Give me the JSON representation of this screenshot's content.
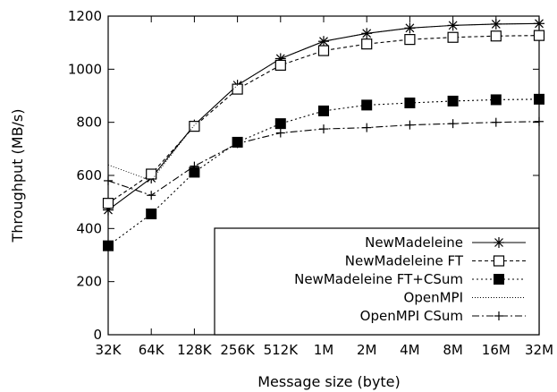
{
  "chart_data": {
    "type": "line",
    "title": "",
    "xlabel": "Message size (byte)",
    "ylabel": "Throughput (MB/s)",
    "categories": [
      "32K",
      "64K",
      "128K",
      "256K",
      "512K",
      "1M",
      "2M",
      "4M",
      "8M",
      "16M",
      "32M"
    ],
    "ylim": [
      0,
      1200
    ],
    "yticks": [
      "0",
      "200",
      "400",
      "600",
      "800",
      "1000",
      "1200"
    ],
    "grid": false,
    "legend_position": "bottom-right",
    "series": [
      {
        "name": "NewMadeleine",
        "marker": "star",
        "dash": "solid",
        "values": [
          470,
          590,
          790,
          940,
          1040,
          1105,
          1135,
          1155,
          1165,
          1170,
          1172
        ]
      },
      {
        "name": "NewMadeleine FT",
        "marker": "open-square",
        "dash": "dashed",
        "values": [
          495,
          605,
          785,
          925,
          1015,
          1070,
          1095,
          1112,
          1120,
          1125,
          1127
        ]
      },
      {
        "name": "NewMadeleine FT+CSum",
        "marker": "filled-square",
        "dash": "dotted",
        "values": [
          335,
          455,
          612,
          725,
          795,
          843,
          865,
          873,
          880,
          885,
          887
        ]
      },
      {
        "name": "OpenMPI",
        "marker": "none",
        "dash": "fine-dotted",
        "values": [
          640,
          580,
          790,
          940,
          1040,
          1105,
          1135,
          1155,
          1165,
          1170,
          1172
        ]
      },
      {
        "name": "OpenMPI CSum",
        "marker": "plus",
        "dash": "dash-dot",
        "values": [
          580,
          525,
          635,
          720,
          760,
          775,
          780,
          790,
          795,
          800,
          803
        ]
      }
    ]
  }
}
